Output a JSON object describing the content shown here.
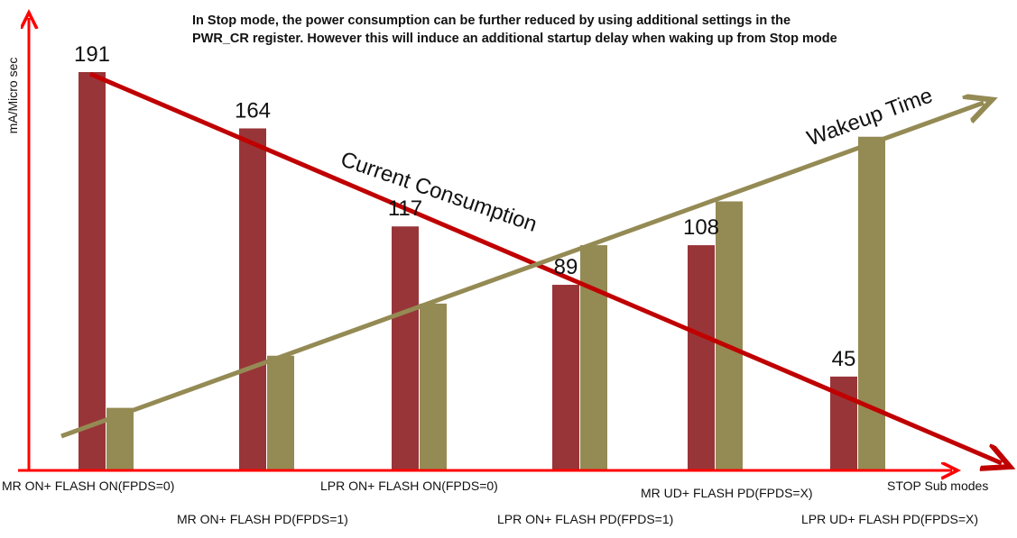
{
  "note": "In Stop mode, the power consumption can be further reduced by using additional settings in the PWR_CR register. However this will induce an additional startup delay when waking up from Stop mode",
  "colors": {
    "axis": "#ff0000",
    "current_bar": "#983538",
    "wakeup_bar": "#948a54",
    "current_line": "#c00000",
    "wakeup_line": "#948a54"
  },
  "chart_data": {
    "type": "bar",
    "ylabel": "mA/Micro sec",
    "xlabel": "STOP Sub modes",
    "categories": [
      "MR ON+ FLASH ON(FPDS=0)",
      "MR ON+ FLASH PD(FPDS=1)",
      "LPR ON+ FLASH ON(FPDS=0)",
      "LPR ON+ FLASH PD(FPDS=1)",
      "MR UD+ FLASH PD(FPDS=X)",
      "LPR UD+ FLASH PD(FPDS=X)"
    ],
    "series": [
      {
        "name": "Current Consumption",
        "values": [
          191,
          164,
          117,
          89,
          108,
          45
        ],
        "labels": [
          "191",
          "164",
          "117",
          "89",
          "108",
          "45"
        ]
      },
      {
        "name": "Wakeup Time",
        "values": [
          30,
          55,
          80,
          108,
          129,
          160
        ]
      }
    ],
    "ylim": [
      0,
      200
    ],
    "legend": "none"
  }
}
